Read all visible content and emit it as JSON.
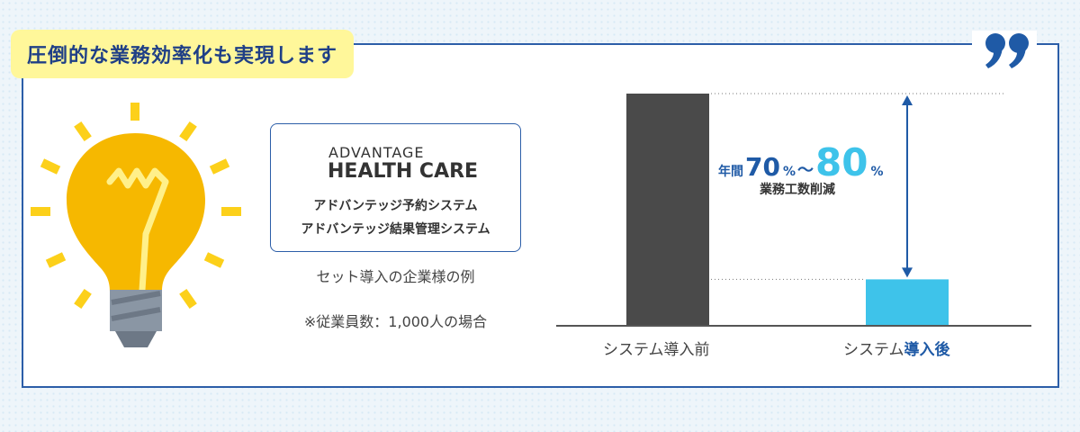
{
  "headline": "圧倒的な業務効率化も実現します",
  "quote_icon": "quote-icon",
  "bulb_icon": "lightbulb-icon",
  "brand": {
    "line1": "ADVANTAGE",
    "line2": "HEALTH CARE"
  },
  "products": [
    "アドバンテッジ予約システム",
    "アドバンテッジ結果管理システム"
  ],
  "captions": {
    "set_example": "セット導入の企業様の例",
    "note": "※従業員数：1,000人の場合"
  },
  "annotation": {
    "prefix": "年間",
    "low": "70",
    "pct1": "%",
    "tilde": "～",
    "high": "80",
    "pct2": "%",
    "label": "業務工数削減"
  },
  "colors": {
    "navy": "#1f5aa6",
    "accent": "#3ec3ea",
    "dark_bar": "#4a4a4a",
    "highlight": "#fff79a"
  },
  "chart_data": {
    "type": "bar",
    "categories": [
      "システム導入前",
      "システム導入後"
    ],
    "category_parts": [
      {
        "normal": "システム導入前",
        "strong": ""
      },
      {
        "normal": "システム",
        "strong": "導入後"
      }
    ],
    "values": [
      100,
      20
    ],
    "ylim": [
      0,
      100
    ],
    "grid": false,
    "colors": [
      "#4a4a4a",
      "#3ec3ea"
    ]
  }
}
